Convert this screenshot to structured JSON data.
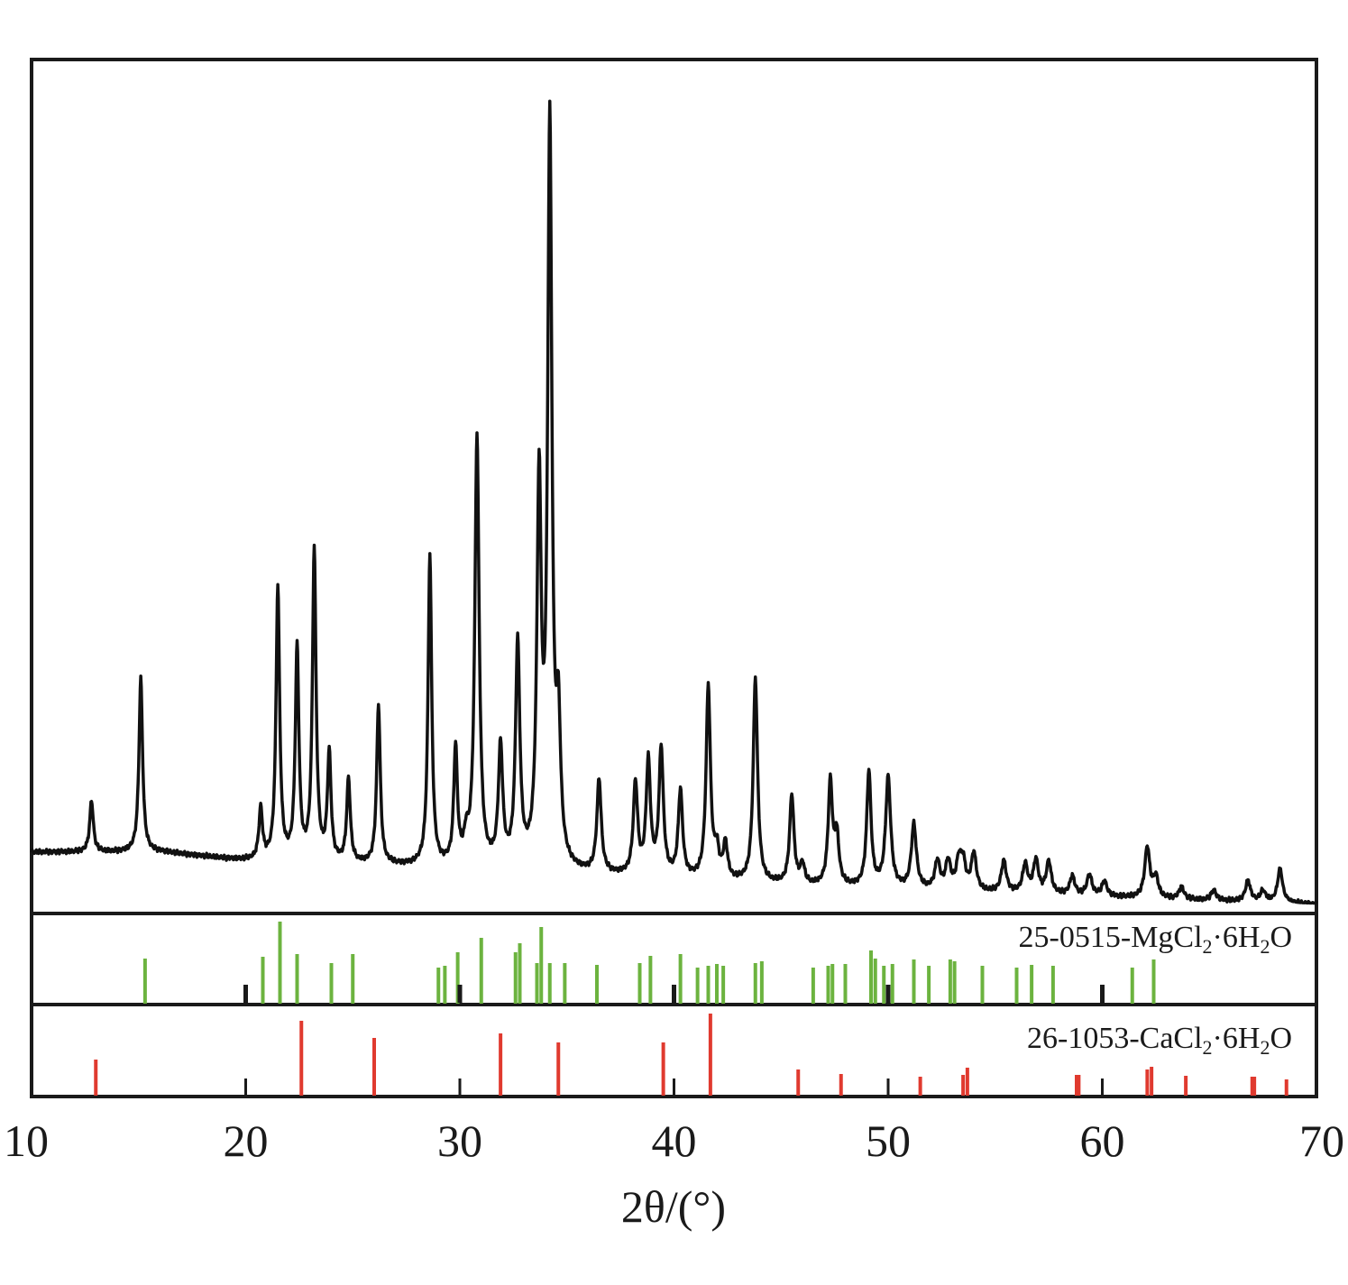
{
  "chart_data": {
    "type": "line",
    "xlabel": "2θ/(°)",
    "x_range": [
      10,
      70
    ],
    "x_ticks": [
      10,
      20,
      30,
      40,
      50,
      60,
      70
    ],
    "y_range": [
      0,
      100
    ],
    "grid": false,
    "colors": {
      "pattern": "#111111",
      "mgcl2": "#6cb33f",
      "cacl2": "#e03a2f",
      "frame": "#1a1a1a"
    },
    "series": [
      {
        "peaks": [
          [
            12.8,
            6.9
          ],
          [
            15.1,
            23.3
          ],
          [
            20.7,
            6.8
          ],
          [
            21.5,
            36.7
          ],
          [
            22.4,
            28.5
          ],
          [
            23.2,
            41.8
          ],
          [
            23.9,
            14.4
          ],
          [
            24.8,
            11.2
          ],
          [
            26.2,
            21.4
          ],
          [
            28.6,
            41.7
          ],
          [
            29.8,
            15.6
          ],
          [
            30.3,
            3.0
          ],
          [
            30.8,
            57.7
          ],
          [
            31.9,
            15.8
          ],
          [
            32.7,
            29.7
          ],
          [
            33.7,
            50.5
          ],
          [
            34.2,
            98.8
          ],
          [
            34.6,
            17.5
          ],
          [
            36.5,
            12.5
          ],
          [
            38.2,
            12.3
          ],
          [
            38.8,
            15.2
          ],
          [
            39.4,
            17.1
          ],
          [
            40.3,
            11.6
          ],
          [
            41.6,
            25.9
          ],
          [
            42.0,
            3.5
          ],
          [
            42.4,
            4.7
          ],
          [
            43.8,
            27.4
          ],
          [
            45.5,
            12.0
          ],
          [
            46.0,
            2.6
          ],
          [
            47.3,
            13.8
          ],
          [
            47.6,
            6.4
          ],
          [
            49.1,
            15.5
          ],
          [
            50.0,
            14.8
          ],
          [
            51.2,
            8.6
          ],
          [
            52.3,
            3.8
          ],
          [
            52.8,
            3.8
          ],
          [
            53.3,
            3.7
          ],
          [
            53.5,
            3.5
          ],
          [
            54.0,
            5.0
          ],
          [
            55.4,
            4.2
          ],
          [
            56.4,
            3.8
          ],
          [
            56.9,
            4.4
          ],
          [
            57.5,
            4.3
          ],
          [
            58.6,
            2.5
          ],
          [
            59.4,
            2.8
          ],
          [
            60.1,
            2.0
          ],
          [
            62.1,
            6.8
          ],
          [
            62.5,
            2.7
          ],
          [
            63.7,
            1.6
          ],
          [
            65.2,
            1.4
          ],
          [
            66.8,
            2.8
          ],
          [
            67.5,
            1.5
          ],
          [
            68.3,
            4.5
          ]
        ]
      }
    ],
    "references": [
      {
        "label": "25-0515-MgCl2·6H2O",
        "label_main": "25-0515-MgCl",
        "label_sub1": "2",
        "label_mid": "·6H",
        "label_sub2": "2",
        "label_end": "O",
        "color": "#6cb33f",
        "lines": [
          [
            15.3,
            51
          ],
          [
            20.8,
            53
          ],
          [
            21.6,
            92
          ],
          [
            22.4,
            56
          ],
          [
            24.0,
            46
          ],
          [
            25.0,
            56
          ],
          [
            29.0,
            41
          ],
          [
            29.3,
            43
          ],
          [
            29.9,
            58
          ],
          [
            31.0,
            74
          ],
          [
            32.6,
            58
          ],
          [
            32.8,
            68
          ],
          [
            33.6,
            46
          ],
          [
            33.8,
            86
          ],
          [
            34.2,
            46
          ],
          [
            34.9,
            46
          ],
          [
            36.4,
            44
          ],
          [
            38.4,
            46
          ],
          [
            38.9,
            54
          ],
          [
            40.3,
            56
          ],
          [
            41.1,
            41
          ],
          [
            41.6,
            43
          ],
          [
            42.0,
            45
          ],
          [
            42.3,
            43
          ],
          [
            43.8,
            46
          ],
          [
            44.1,
            48
          ],
          [
            46.5,
            41
          ],
          [
            47.2,
            43
          ],
          [
            47.4,
            45
          ],
          [
            48.0,
            45
          ],
          [
            49.2,
            60
          ],
          [
            49.4,
            51
          ],
          [
            49.8,
            43
          ],
          [
            50.2,
            45
          ],
          [
            51.2,
            50
          ],
          [
            51.9,
            43
          ],
          [
            52.9,
            50
          ],
          [
            53.1,
            48
          ],
          [
            54.4,
            43
          ],
          [
            56.0,
            41
          ],
          [
            56.7,
            44
          ],
          [
            57.7,
            43
          ],
          [
            61.4,
            41
          ],
          [
            62.4,
            50
          ]
        ]
      },
      {
        "label": "26-1053-CaCl2·6H2O",
        "label_main": "26-1053-CaCl",
        "label_sub1": "2",
        "label_mid": "·6H",
        "label_sub2": "2",
        "label_end": "O",
        "color": "#e03a2f",
        "lines": [
          [
            13.0,
            41
          ],
          [
            22.6,
            84
          ],
          [
            26.0,
            65
          ],
          [
            31.9,
            70
          ],
          [
            34.6,
            60
          ],
          [
            39.5,
            60
          ],
          [
            41.7,
            92
          ],
          [
            45.8,
            30
          ],
          [
            47.8,
            25
          ],
          [
            51.5,
            22
          ],
          [
            53.5,
            24
          ],
          [
            53.7,
            32
          ],
          [
            58.8,
            24
          ],
          [
            58.9,
            24
          ],
          [
            62.1,
            30
          ],
          [
            62.3,
            33
          ],
          [
            63.9,
            23
          ],
          [
            67.0,
            22
          ],
          [
            67.1,
            22
          ],
          [
            68.6,
            19
          ]
        ]
      }
    ]
  }
}
